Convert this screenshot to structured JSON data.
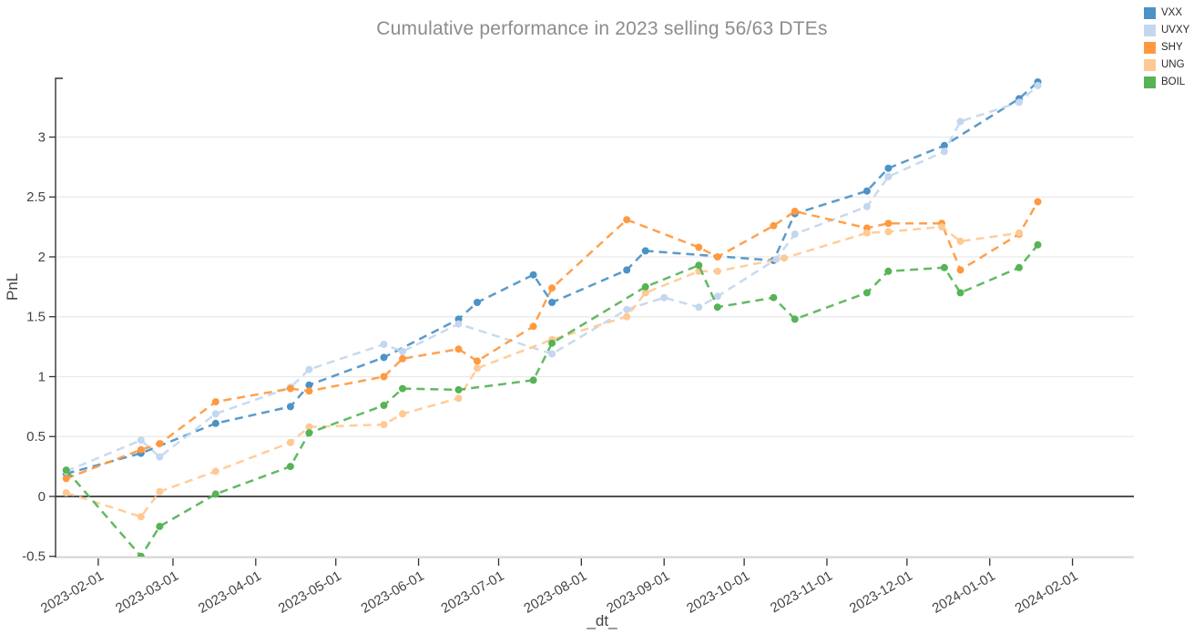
{
  "title": "Cumulative performance in 2023 selling 56/63 DTEs",
  "x_axis_title": "_dt_",
  "y_axis_title": "PnL",
  "legend": {
    "items": [
      {
        "label": "VXX",
        "color": "#4c92c6"
      },
      {
        "label": "UVXY",
        "color": "#c3d7ee"
      },
      {
        "label": "SHY",
        "color": "#ff9940"
      },
      {
        "label": "UNG",
        "color": "#ffc993"
      },
      {
        "label": "BOIL",
        "color": "#56b356"
      }
    ]
  },
  "chart_data": {
    "type": "line",
    "title": "Cumulative performance in 2023 selling 56/63 DTEs",
    "xlabel": "_dt_",
    "ylabel": "PnL",
    "line_style": "dashed-with-markers",
    "grid": true,
    "legend_position": "top-right",
    "x_range": [
      "2023-01-16",
      "2024-02-24"
    ],
    "y_range": [
      -0.502,
      3.574
    ],
    "xticks": [
      "2023-02-01",
      "2023-03-01",
      "2023-04-01",
      "2023-05-01",
      "2023-06-01",
      "2023-07-01",
      "2023-08-01",
      "2023-09-01",
      "2023-10-01",
      "2023-11-01",
      "2023-12-01",
      "2024-01-01",
      "2024-02-01"
    ],
    "yticks": [
      -0.5,
      0,
      0.5,
      1,
      1.5,
      2,
      2.5,
      3
    ],
    "ytick_labels": [
      "-0.5",
      "0",
      "0.5",
      "1",
      "1.5",
      "2",
      "2.5",
      "3"
    ],
    "series": [
      {
        "name": "VXX",
        "color": "#4c92c6",
        "points": [
          [
            "2023-01-20",
            0.19
          ],
          [
            "2023-02-17",
            0.36
          ],
          [
            "2023-03-17",
            0.61
          ],
          [
            "2023-04-14",
            0.75
          ],
          [
            "2023-04-21",
            0.93
          ],
          [
            "2023-05-19",
            1.16
          ],
          [
            "2023-06-16",
            1.48
          ],
          [
            "2023-06-23",
            1.62
          ],
          [
            "2023-07-14",
            1.85
          ],
          [
            "2023-07-21",
            1.62
          ],
          [
            "2023-08-18",
            1.89
          ],
          [
            "2023-08-25",
            2.05
          ],
          [
            "2023-10-12",
            1.97
          ],
          [
            "2023-10-20",
            2.36
          ],
          [
            "2023-11-16",
            2.55
          ],
          [
            "2023-11-24",
            2.74
          ],
          [
            "2023-12-15",
            2.93
          ],
          [
            "2024-01-12",
            3.32
          ],
          [
            "2024-01-19",
            3.46
          ]
        ]
      },
      {
        "name": "UVXY",
        "color": "#c3d7ee",
        "points": [
          [
            "2023-01-20",
            0.21
          ],
          [
            "2023-02-17",
            0.47
          ],
          [
            "2023-02-24",
            0.33
          ],
          [
            "2023-03-17",
            0.69
          ],
          [
            "2023-04-14",
            0.91
          ],
          [
            "2023-04-21",
            1.06
          ],
          [
            "2023-05-19",
            1.27
          ],
          [
            "2023-05-26",
            1.21
          ],
          [
            "2023-06-16",
            1.44
          ],
          [
            "2023-07-21",
            1.19
          ],
          [
            "2023-08-18",
            1.56
          ],
          [
            "2023-09-01",
            1.66
          ],
          [
            "2023-09-14",
            1.58
          ],
          [
            "2023-09-21",
            1.67
          ],
          [
            "2023-10-13",
            1.98
          ],
          [
            "2023-10-20",
            2.19
          ],
          [
            "2023-11-16",
            2.42
          ],
          [
            "2023-11-24",
            2.67
          ],
          [
            "2023-12-15",
            2.88
          ],
          [
            "2023-12-21",
            3.13
          ],
          [
            "2024-01-12",
            3.29
          ],
          [
            "2024-01-19",
            3.43
          ]
        ]
      },
      {
        "name": "SHY",
        "color": "#ff9940",
        "points": [
          [
            "2023-01-20",
            0.15
          ],
          [
            "2023-02-17",
            0.39
          ],
          [
            "2023-02-24",
            0.44
          ],
          [
            "2023-03-17",
            0.79
          ],
          [
            "2023-04-14",
            0.9
          ],
          [
            "2023-04-21",
            0.88
          ],
          [
            "2023-05-19",
            1.0
          ],
          [
            "2023-05-26",
            1.15
          ],
          [
            "2023-06-16",
            1.23
          ],
          [
            "2023-06-23",
            1.13
          ],
          [
            "2023-07-14",
            1.42
          ],
          [
            "2023-07-21",
            1.74
          ],
          [
            "2023-08-18",
            2.31
          ],
          [
            "2023-09-14",
            2.08
          ],
          [
            "2023-09-21",
            2.0
          ],
          [
            "2023-10-12",
            2.26
          ],
          [
            "2023-10-20",
            2.38
          ],
          [
            "2023-11-16",
            2.24
          ],
          [
            "2023-11-24",
            2.28
          ],
          [
            "2023-12-14",
            2.28
          ],
          [
            "2023-12-21",
            1.89
          ],
          [
            "2024-01-12",
            2.19
          ],
          [
            "2024-01-19",
            2.46
          ]
        ]
      },
      {
        "name": "UNG",
        "color": "#ffc993",
        "points": [
          [
            "2023-01-20",
            0.03
          ],
          [
            "2023-02-17",
            -0.17
          ],
          [
            "2023-02-24",
            0.04
          ],
          [
            "2023-03-17",
            0.21
          ],
          [
            "2023-04-14",
            0.45
          ],
          [
            "2023-04-21",
            0.58
          ],
          [
            "2023-05-19",
            0.6
          ],
          [
            "2023-05-26",
            0.69
          ],
          [
            "2023-06-16",
            0.82
          ],
          [
            "2023-06-23",
            1.07
          ],
          [
            "2023-07-21",
            1.31
          ],
          [
            "2023-08-18",
            1.5
          ],
          [
            "2023-08-25",
            1.7
          ],
          [
            "2023-09-14",
            1.88
          ],
          [
            "2023-09-21",
            1.88
          ],
          [
            "2023-10-16",
            1.99
          ],
          [
            "2023-11-16",
            2.2
          ],
          [
            "2023-11-24",
            2.21
          ],
          [
            "2023-12-14",
            2.25
          ],
          [
            "2023-12-21",
            2.13
          ],
          [
            "2024-01-12",
            2.2
          ]
        ]
      },
      {
        "name": "BOIL",
        "color": "#56b356",
        "points": [
          [
            "2023-01-20",
            0.22
          ],
          [
            "2023-02-17",
            -0.5
          ],
          [
            "2023-02-24",
            -0.25
          ],
          [
            "2023-03-17",
            0.02
          ],
          [
            "2023-04-14",
            0.25
          ],
          [
            "2023-04-21",
            0.53
          ],
          [
            "2023-05-19",
            0.76
          ],
          [
            "2023-05-26",
            0.9
          ],
          [
            "2023-06-16",
            0.89
          ],
          [
            "2023-07-14",
            0.97
          ],
          [
            "2023-07-21",
            1.28
          ],
          [
            "2023-08-25",
            1.75
          ],
          [
            "2023-09-14",
            1.93
          ],
          [
            "2023-09-21",
            1.58
          ],
          [
            "2023-10-12",
            1.66
          ],
          [
            "2023-10-20",
            1.48
          ],
          [
            "2023-11-16",
            1.7
          ],
          [
            "2023-11-24",
            1.88
          ],
          [
            "2023-12-15",
            1.91
          ],
          [
            "2023-12-21",
            1.7
          ],
          [
            "2024-01-12",
            1.91
          ],
          [
            "2024-01-19",
            2.1
          ]
        ]
      }
    ]
  }
}
